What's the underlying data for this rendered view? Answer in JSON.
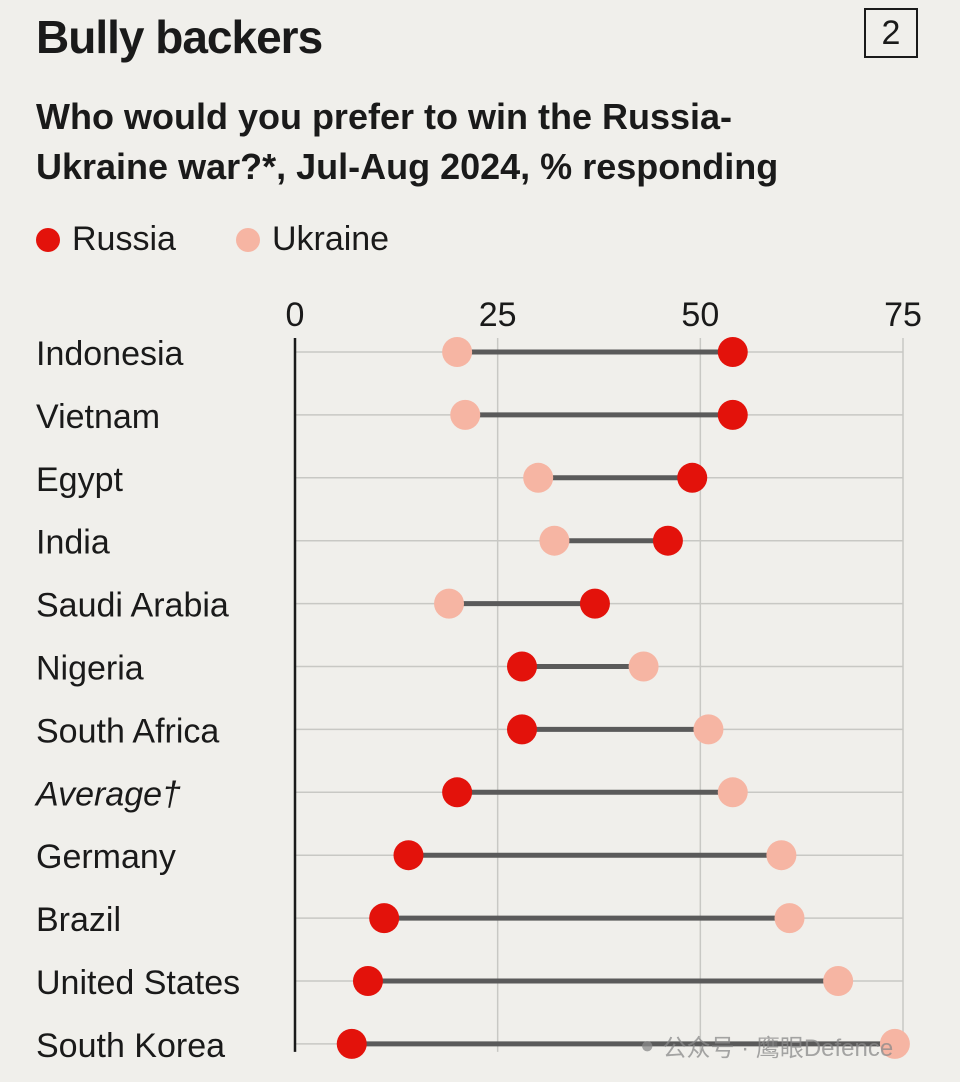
{
  "header": {
    "title": "Bully backers",
    "chart_number": "2",
    "subtitle": "Who would you prefer to win the Russia-Ukraine war?*, Jul-Aug 2024, % responding"
  },
  "legend": [
    {
      "name": "Russia",
      "color": "#e3120b"
    },
    {
      "name": "Ukraine",
      "color": "#f6b5a3"
    }
  ],
  "watermark": {
    "icon": "wechat-icon",
    "text": "公众号 · 鹰眼Defence"
  },
  "chart_data": {
    "type": "dumbbell",
    "title": "Bully backers",
    "subtitle": "Who would you prefer to win the Russia-Ukraine war?*, Jul-Aug 2024, % responding",
    "xlim": [
      0,
      75
    ],
    "xticks": [
      0,
      25,
      50,
      75
    ],
    "grid": true,
    "legend_position": "top-left",
    "categories": [
      "Indonesia",
      "Vietnam",
      "Egypt",
      "India",
      "Saudi Arabia",
      "Nigeria",
      "South Africa",
      "Average†",
      "Germany",
      "Brazil",
      "United States",
      "South Korea"
    ],
    "italic_categories": [
      "Average†"
    ],
    "series": [
      {
        "name": "Russia",
        "color": "#e3120b",
        "values": [
          54,
          54,
          49,
          46,
          37,
          28,
          28,
          20,
          14,
          11,
          9,
          7
        ]
      },
      {
        "name": "Ukraine",
        "color": "#f6b5a3",
        "values": [
          20,
          21,
          30,
          32,
          19,
          43,
          51,
          54,
          60,
          61,
          67,
          74
        ]
      }
    ]
  }
}
